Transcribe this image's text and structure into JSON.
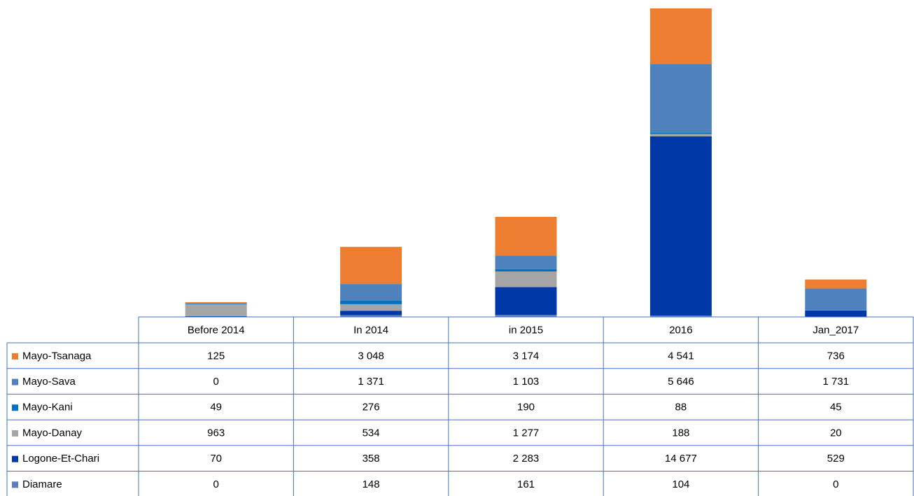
{
  "chart_data": {
    "type": "stacked_bar",
    "categories": [
      "Before 2014",
      "In 2014",
      "in 2015",
      "2016",
      "Jan_2017"
    ],
    "series": [
      {
        "name": "Mayo-Tsanaga",
        "color": "#ed7d31",
        "values": [
          125,
          3048,
          3174,
          4541,
          736
        ],
        "value_labels": [
          "125",
          "3 048",
          "3 174",
          "4 541",
          "736"
        ]
      },
      {
        "name": "Mayo-Sava",
        "color": "#4f81bd",
        "values": [
          0,
          1371,
          1103,
          5646,
          1731
        ],
        "value_labels": [
          "0",
          "1 371",
          "1 103",
          "5 646",
          "1 731"
        ]
      },
      {
        "name": "Mayo-Kani",
        "color": "#0070c0",
        "values": [
          49,
          276,
          190,
          88,
          45
        ],
        "value_labels": [
          "49",
          "276",
          "190",
          "88",
          "45"
        ]
      },
      {
        "name": "Mayo-Danay",
        "color": "#a5a5a5",
        "values": [
          963,
          534,
          1277,
          188,
          20
        ],
        "value_labels": [
          "963",
          "534",
          "1 277",
          "188",
          "20"
        ]
      },
      {
        "name": "Logone-Et-Chari",
        "color": "#0038a8",
        "values": [
          70,
          358,
          2283,
          14677,
          529
        ],
        "value_labels": [
          "70",
          "358",
          "2 283",
          "14 677",
          "529"
        ]
      },
      {
        "name": "Diamare",
        "color": "#5b7fb8",
        "values": [
          0,
          148,
          161,
          104,
          0
        ],
        "value_labels": [
          "0",
          "148",
          "161",
          "104",
          "0"
        ]
      }
    ]
  }
}
